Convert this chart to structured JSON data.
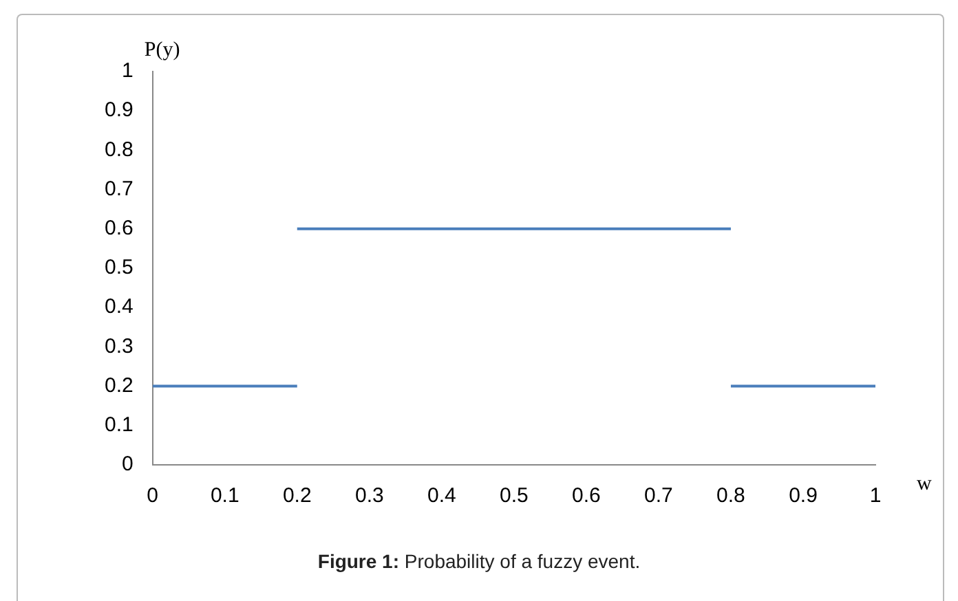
{
  "chart_data": {
    "type": "line",
    "xlabel": "w",
    "ylabel": "P(y)",
    "series": [
      {
        "color": "#4a7ebb",
        "x": [
          0,
          0.2
        ],
        "values": [
          0.2,
          0.2
        ]
      },
      {
        "color": "#4a7ebb",
        "x": [
          0.2,
          0.8
        ],
        "values": [
          0.6,
          0.6
        ]
      },
      {
        "color": "#4a7ebb",
        "x": [
          0.8,
          1
        ],
        "values": [
          0.2,
          0.2
        ]
      }
    ],
    "xlim": [
      0,
      1
    ],
    "xticks": [
      0,
      0.1,
      0.2,
      0.3,
      0.4,
      0.5,
      0.6,
      0.7,
      0.8,
      0.9,
      1
    ],
    "ylim": [
      0,
      1
    ],
    "yticks": [
      0,
      0.1,
      0.2,
      0.3,
      0.4,
      0.5,
      0.6,
      0.7,
      0.8,
      0.9,
      1
    ],
    "grid": false,
    "legend": false,
    "marker": "none",
    "line_style": "solid",
    "annotations": [
      "Figure 1: Probability of a fuzzy event."
    ]
  }
}
